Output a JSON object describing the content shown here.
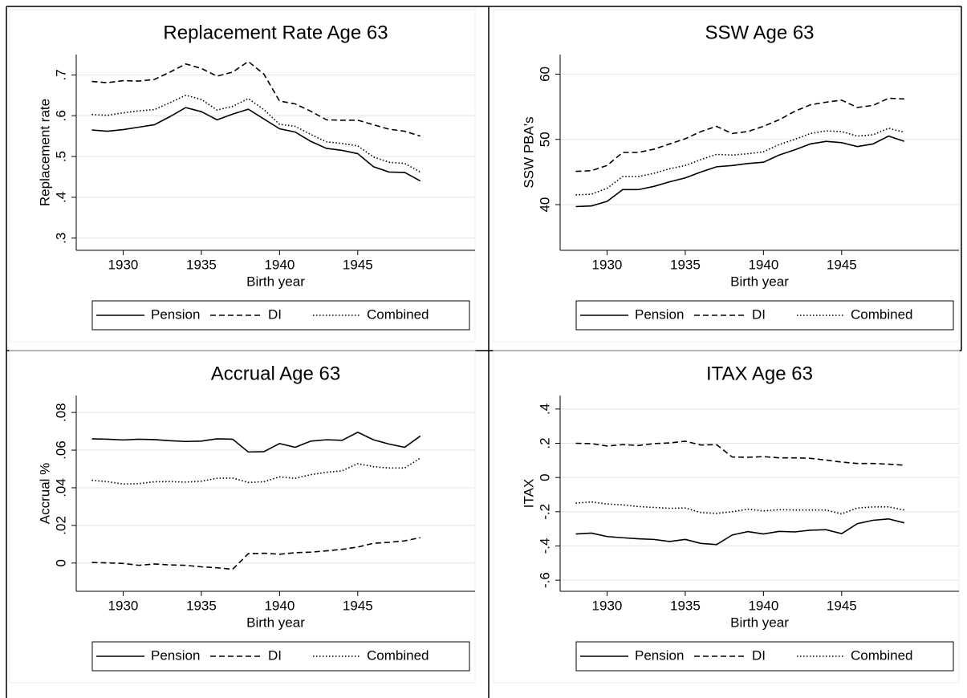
{
  "chart_data": [
    {
      "type": "line",
      "title": "Replacement Rate Age 63",
      "xlabel": "Birth year",
      "ylabel": "Replacement rate",
      "x": [
        1928,
        1929,
        1930,
        1931,
        1932,
        1933,
        1934,
        1935,
        1936,
        1937,
        1938,
        1939,
        1940,
        1941,
        1942,
        1943,
        1944,
        1945,
        1946,
        1947,
        1948,
        1949
      ],
      "series": [
        {
          "name": "Pension",
          "color": "#000000",
          "dash": "solid",
          "values": [
            0.565,
            0.562,
            0.566,
            0.572,
            0.578,
            0.598,
            0.62,
            0.61,
            0.59,
            0.604,
            0.616,
            0.592,
            0.568,
            0.56,
            0.537,
            0.52,
            0.515,
            0.507,
            0.475,
            0.462,
            0.461,
            0.44
          ]
        },
        {
          "name": "DI",
          "color": "#000000",
          "dash": "dashed",
          "values": [
            0.684,
            0.681,
            0.686,
            0.685,
            0.689,
            0.707,
            0.727,
            0.716,
            0.697,
            0.707,
            0.733,
            0.702,
            0.636,
            0.629,
            0.611,
            0.59,
            0.589,
            0.589,
            0.578,
            0.567,
            0.562,
            0.55
          ]
        },
        {
          "name": "Combined",
          "color": "#000000",
          "dash": "dotted",
          "values": [
            0.603,
            0.601,
            0.607,
            0.612,
            0.615,
            0.632,
            0.65,
            0.64,
            0.614,
            0.623,
            0.642,
            0.615,
            0.579,
            0.574,
            0.554,
            0.536,
            0.532,
            0.526,
            0.499,
            0.486,
            0.483,
            0.462
          ]
        }
      ],
      "xlim": [
        1927,
        1952.5
      ],
      "xticks": [
        1930,
        1935,
        1940,
        1945
      ],
      "ylim": [
        0.27,
        0.75
      ],
      "yticks": [
        {
          "value": 0.3,
          "label": ".3"
        },
        {
          "value": 0.4,
          "label": ".4"
        },
        {
          "value": 0.5,
          "label": ".5"
        },
        {
          "value": 0.6,
          "label": ".6"
        },
        {
          "value": 0.7,
          "label": ".7"
        }
      ],
      "grid": true,
      "legend": "bottom"
    },
    {
      "type": "line",
      "title": "SSW Age 63",
      "xlabel": "Birth year",
      "ylabel": "SSW PBA's",
      "x": [
        1928,
        1929,
        1930,
        1931,
        1932,
        1933,
        1934,
        1935,
        1936,
        1937,
        1938,
        1939,
        1940,
        1941,
        1942,
        1943,
        1944,
        1945,
        1946,
        1947,
        1948,
        1949
      ],
      "series": [
        {
          "name": "Pension",
          "color": "#000000",
          "dash": "solid",
          "values": [
            39.7,
            39.8,
            40.5,
            42.3,
            42.3,
            42.8,
            43.5,
            44.1,
            45,
            45.8,
            46,
            46.3,
            46.5,
            47.6,
            48.4,
            49.3,
            49.7,
            49.5,
            48.9,
            49.3,
            50.5,
            49.7
          ]
        },
        {
          "name": "DI",
          "color": "#000000",
          "dash": "dashed",
          "values": [
            45.1,
            45.2,
            46,
            48,
            48,
            48.5,
            49.3,
            50.1,
            51.2,
            52,
            50.9,
            51.2,
            52,
            53,
            54.3,
            55.3,
            55.7,
            56,
            54.9,
            55.2,
            56.3,
            56.2
          ]
        },
        {
          "name": "Combined",
          "color": "#000000",
          "dash": "dotted",
          "values": [
            41.5,
            41.6,
            42.5,
            44.3,
            44.3,
            44.8,
            45.5,
            46,
            46.9,
            47.7,
            47.6,
            47.8,
            48.1,
            49.2,
            50,
            50.9,
            51.3,
            51.2,
            50.5,
            50.7,
            51.7,
            51.1
          ]
        }
      ],
      "xlim": [
        1927,
        1952.5
      ],
      "xticks": [
        1930,
        1935,
        1940,
        1945
      ],
      "ylim": [
        33,
        63
      ],
      "yticks": [
        40,
        50,
        60
      ],
      "grid": true,
      "legend": "bottom"
    },
    {
      "type": "line",
      "title": "Accrual Age 63",
      "xlabel": "Birth year",
      "ylabel": "Accrual %",
      "x": [
        1928,
        1929,
        1930,
        1931,
        1932,
        1933,
        1934,
        1935,
        1936,
        1937,
        1938,
        1939,
        1940,
        1941,
        1942,
        1943,
        1944,
        1945,
        1946,
        1947,
        1948,
        1949
      ],
      "series": [
        {
          "name": "Pension",
          "color": "#000000",
          "dash": "solid",
          "values": [
            0.066,
            0.0658,
            0.0654,
            0.0658,
            0.0656,
            0.065,
            0.0646,
            0.0648,
            0.066,
            0.0658,
            0.059,
            0.0592,
            0.0635,
            0.0615,
            0.0648,
            0.0655,
            0.0652,
            0.0695,
            0.0655,
            0.0632,
            0.0615,
            0.0675
          ]
        },
        {
          "name": "DI",
          "color": "#000000",
          "dash": "dashed",
          "values": [
            0.0003,
            0.0001,
            -0.0002,
            -0.0012,
            -0.0005,
            -0.001,
            -0.0012,
            -0.002,
            -0.0025,
            -0.0033,
            0.005,
            0.0052,
            0.0047,
            0.0055,
            0.0058,
            0.0065,
            0.0073,
            0.0085,
            0.0105,
            0.011,
            0.0118,
            0.0135
          ]
        },
        {
          "name": "Combined",
          "color": "#000000",
          "dash": "dotted",
          "values": [
            0.044,
            0.0432,
            0.042,
            0.0422,
            0.0432,
            0.0433,
            0.043,
            0.0435,
            0.045,
            0.0452,
            0.0428,
            0.0432,
            0.0458,
            0.045,
            0.047,
            0.0482,
            0.049,
            0.0528,
            0.0512,
            0.0505,
            0.0505,
            0.0558
          ]
        }
      ],
      "xlim": [
        1927,
        1952.5
      ],
      "xticks": [
        1930,
        1935,
        1940,
        1945
      ],
      "ylim": [
        -0.015,
        0.089
      ],
      "yticks": [
        0,
        {
          "value": 0.02,
          "label": ".02"
        },
        {
          "value": 0.04,
          "label": ".04"
        },
        {
          "value": 0.06,
          "label": ".06"
        },
        {
          "value": 0.08,
          "label": ".08"
        }
      ],
      "grid": true,
      "legend": "bottom"
    },
    {
      "type": "line",
      "title": "ITAX Age 63",
      "xlabel": "Birth year",
      "ylabel": "ITAX",
      "x": [
        1928,
        1929,
        1930,
        1931,
        1932,
        1933,
        1934,
        1935,
        1936,
        1937,
        1938,
        1939,
        1940,
        1941,
        1942,
        1943,
        1944,
        1945,
        1946,
        1947,
        1948,
        1949
      ],
      "series": [
        {
          "name": "Pension",
          "color": "#000000",
          "dash": "solid",
          "values": [
            -0.33,
            -0.325,
            -0.345,
            -0.352,
            -0.358,
            -0.362,
            -0.374,
            -0.362,
            -0.385,
            -0.392,
            -0.336,
            -0.316,
            -0.33,
            -0.315,
            -0.318,
            -0.308,
            -0.305,
            -0.328,
            -0.27,
            -0.25,
            -0.242,
            -0.265
          ]
        },
        {
          "name": "DI",
          "color": "#000000",
          "dash": "dashed",
          "values": [
            0.2,
            0.198,
            0.184,
            0.192,
            0.187,
            0.198,
            0.202,
            0.212,
            0.19,
            0.192,
            0.12,
            0.118,
            0.122,
            0.115,
            0.115,
            0.112,
            0.102,
            0.09,
            0.082,
            0.082,
            0.078,
            0.072
          ]
        },
        {
          "name": "Combined",
          "color": "#000000",
          "dash": "dotted",
          "values": [
            -0.15,
            -0.143,
            -0.155,
            -0.16,
            -0.17,
            -0.175,
            -0.18,
            -0.178,
            -0.205,
            -0.21,
            -0.2,
            -0.185,
            -0.195,
            -0.188,
            -0.19,
            -0.19,
            -0.19,
            -0.213,
            -0.178,
            -0.172,
            -0.172,
            -0.19
          ]
        }
      ],
      "xlim": [
        1927,
        1952.5
      ],
      "xticks": [
        1930,
        1935,
        1940,
        1945
      ],
      "ylim": [
        -0.665,
        0.479
      ],
      "yticks": [
        {
          "value": -0.6,
          "label": "-.6"
        },
        {
          "value": -0.4,
          "label": "-.4"
        },
        {
          "value": -0.2,
          "label": "-.2"
        },
        0,
        {
          "value": 0.2,
          "label": ".2"
        },
        {
          "value": 0.4,
          "label": ".4"
        }
      ],
      "grid": true,
      "legend": "bottom"
    }
  ]
}
